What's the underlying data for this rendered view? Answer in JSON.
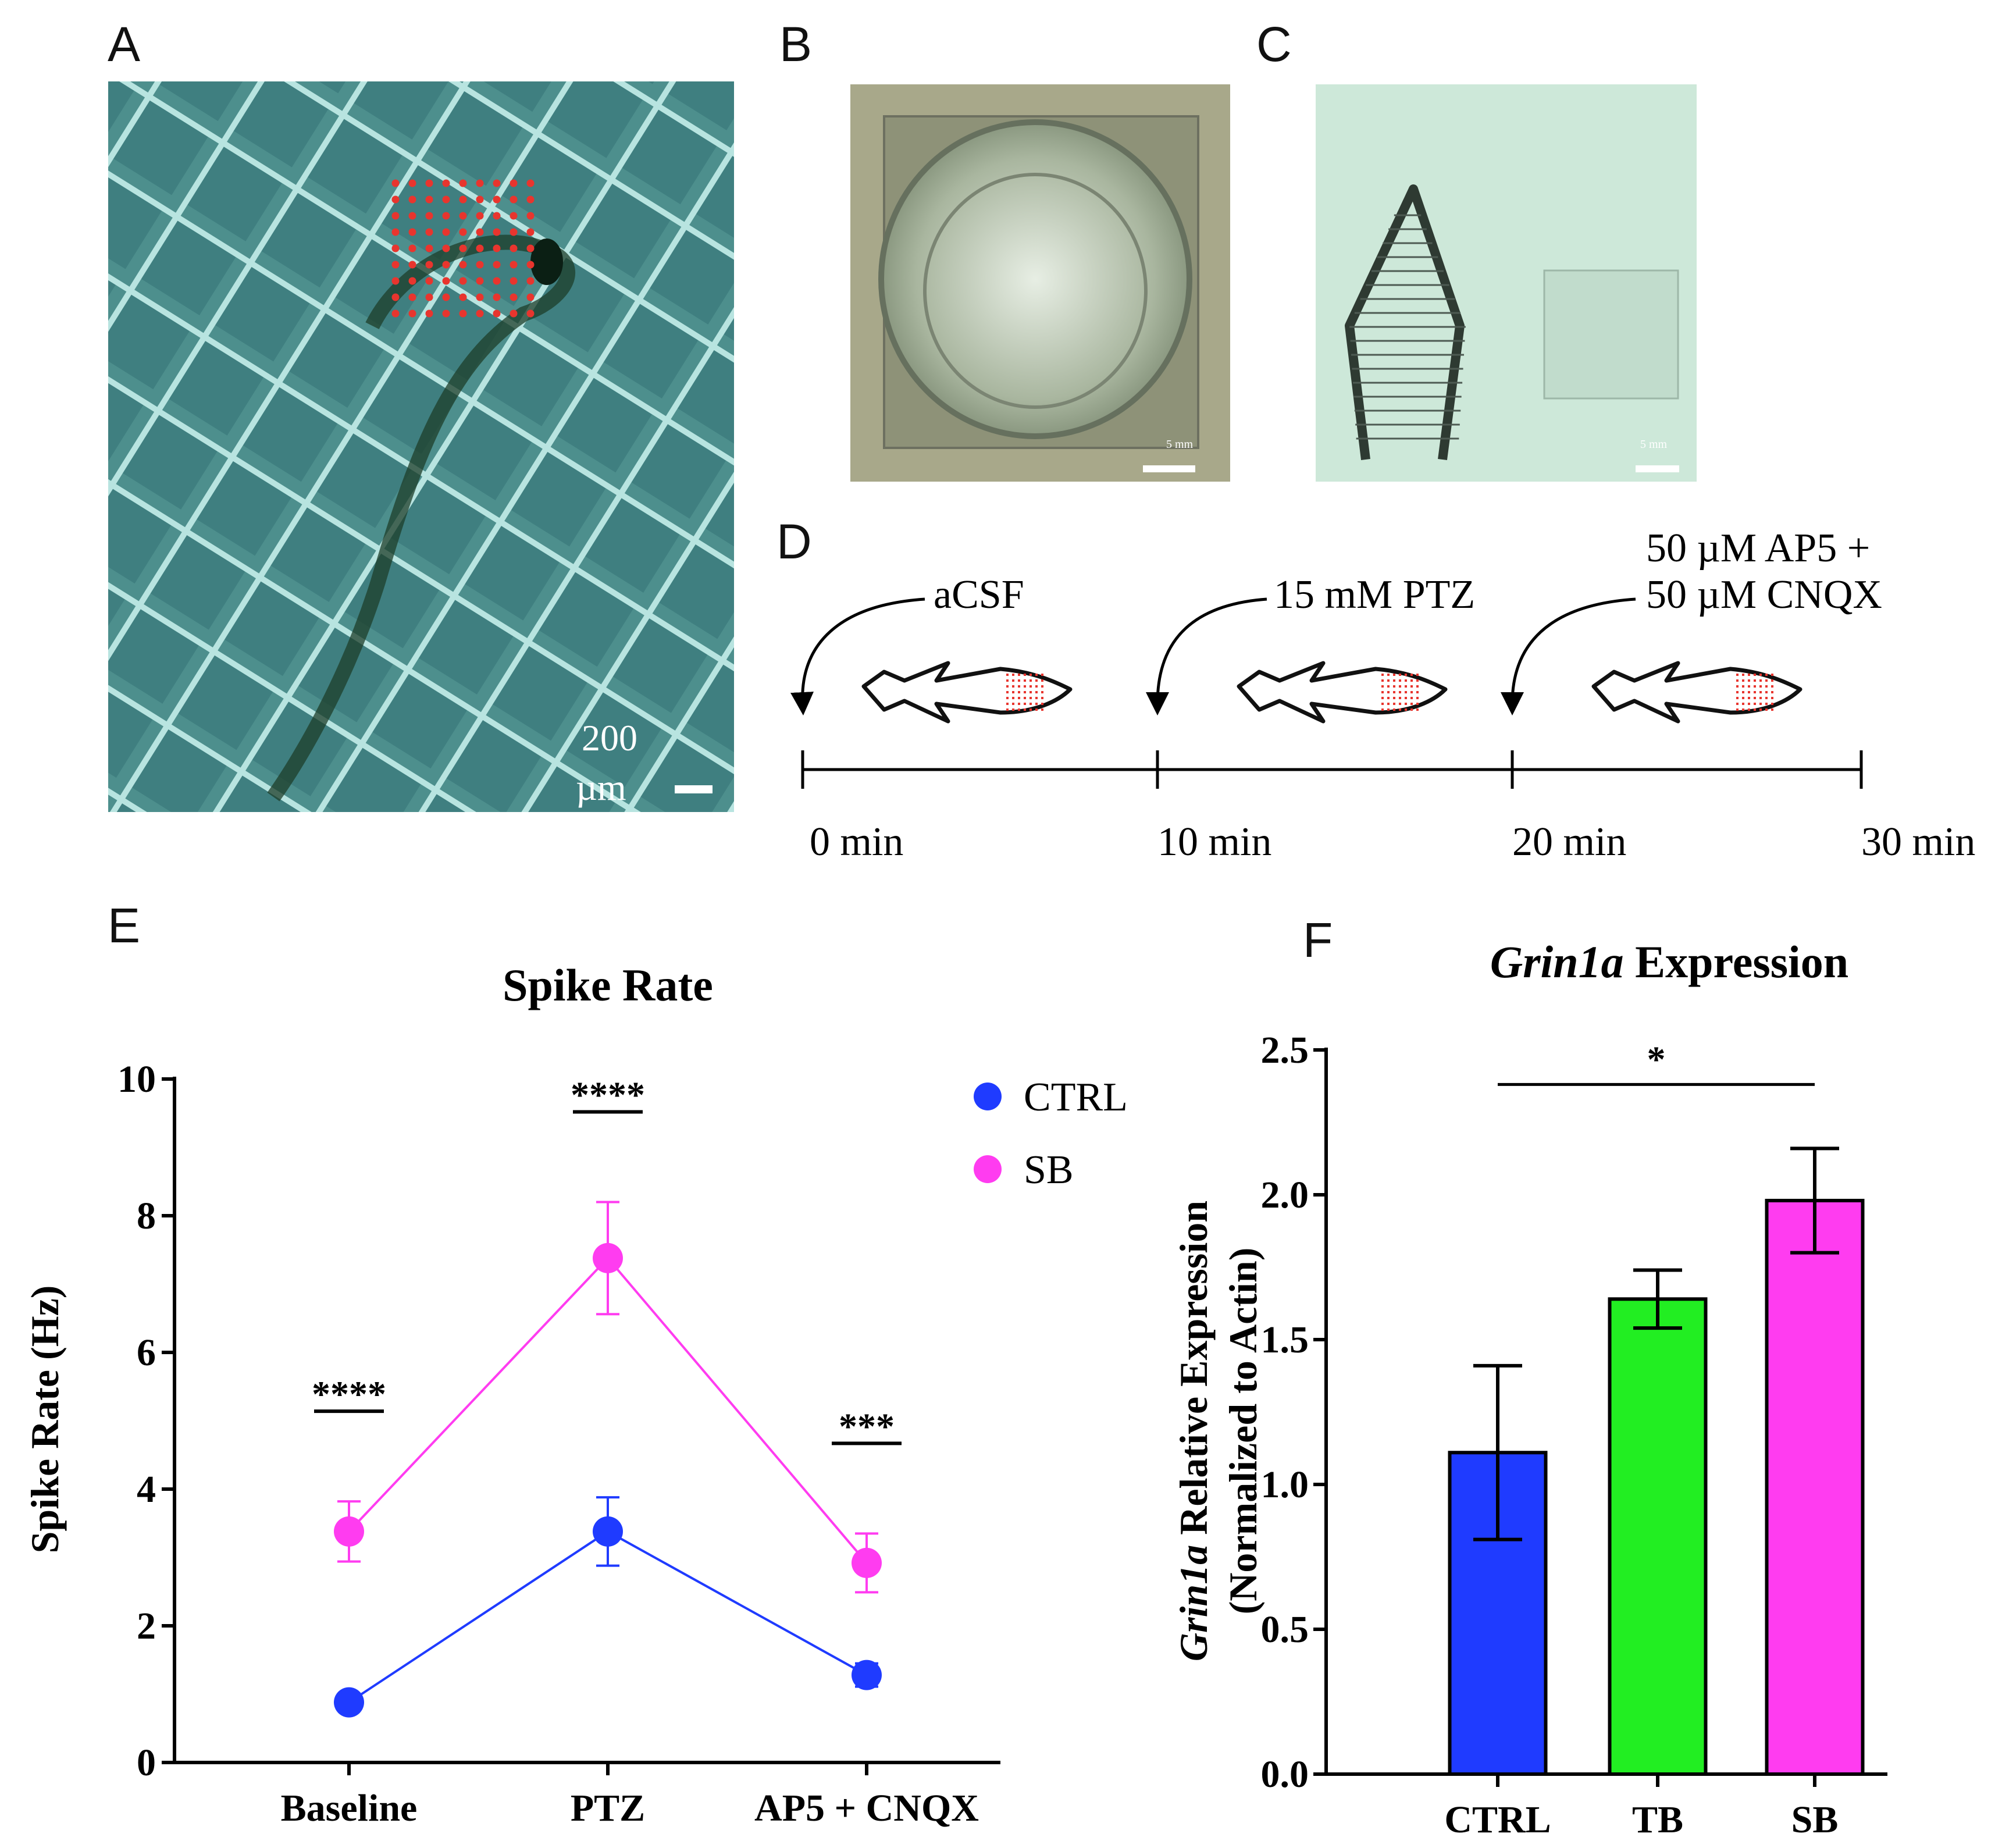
{
  "panels": {
    "a": {
      "label": "A",
      "scale_value": "200",
      "scale_unit": "µm"
    },
    "b": {
      "label": "B",
      "scale_text": "5 mm"
    },
    "c": {
      "label": "C",
      "scale_text": "5 mm"
    },
    "d": {
      "label": "D",
      "steps": [
        "aCSF",
        "15 mM PTZ",
        "50 µM AP5 +",
        "50 µM CNQX"
      ],
      "times": [
        "0 min",
        "10 min",
        "20 min",
        "30 min"
      ]
    },
    "e": {
      "label": "E"
    },
    "f": {
      "label": "F"
    }
  },
  "colors": {
    "ctrl": "#1f3bff",
    "sb": "#ff3cf0",
    "tb": "#22ee22",
    "dot": "#e8352e"
  },
  "chart_data": [
    {
      "type": "line",
      "title": "Spike Rate",
      "xlabel": "",
      "ylabel": "Spike Rate (Hz)",
      "categories": [
        "Baseline",
        "PTZ",
        "AP5 + CNQX"
      ],
      "ylim": [
        0,
        10
      ],
      "yticks": [
        "0",
        "2",
        "4",
        "6",
        "8",
        "10"
      ],
      "legend_position": "top-right",
      "series": [
        {
          "name": "CTRL",
          "values": [
            0.88,
            3.38,
            1.28
          ],
          "errors": [
            0.0,
            0.5,
            0.17
          ]
        },
        {
          "name": "SB",
          "values": [
            3.38,
            7.38,
            2.92
          ],
          "errors": [
            0.44,
            0.82,
            0.43
          ]
        }
      ],
      "significance": [
        "****",
        "****",
        "***"
      ]
    },
    {
      "type": "bar",
      "title_italic": "Grin1a",
      "title_rest": " Expression",
      "ylabel_italic": "Grin1a",
      "ylabel_rest": " Relative Expression",
      "ylabel_line2": "(Normalized to Actin)",
      "categories": [
        "CTRL",
        "TB",
        "SB"
      ],
      "values": [
        1.11,
        1.64,
        1.98
      ],
      "errors": [
        0.3,
        0.1,
        0.18
      ],
      "ylim": [
        0,
        2.5
      ],
      "yticks": [
        "0.0",
        "0.5",
        "1.0",
        "1.5",
        "2.0",
        "2.5"
      ],
      "significance": {
        "label": "*",
        "from": "CTRL",
        "to": "SB"
      }
    }
  ]
}
